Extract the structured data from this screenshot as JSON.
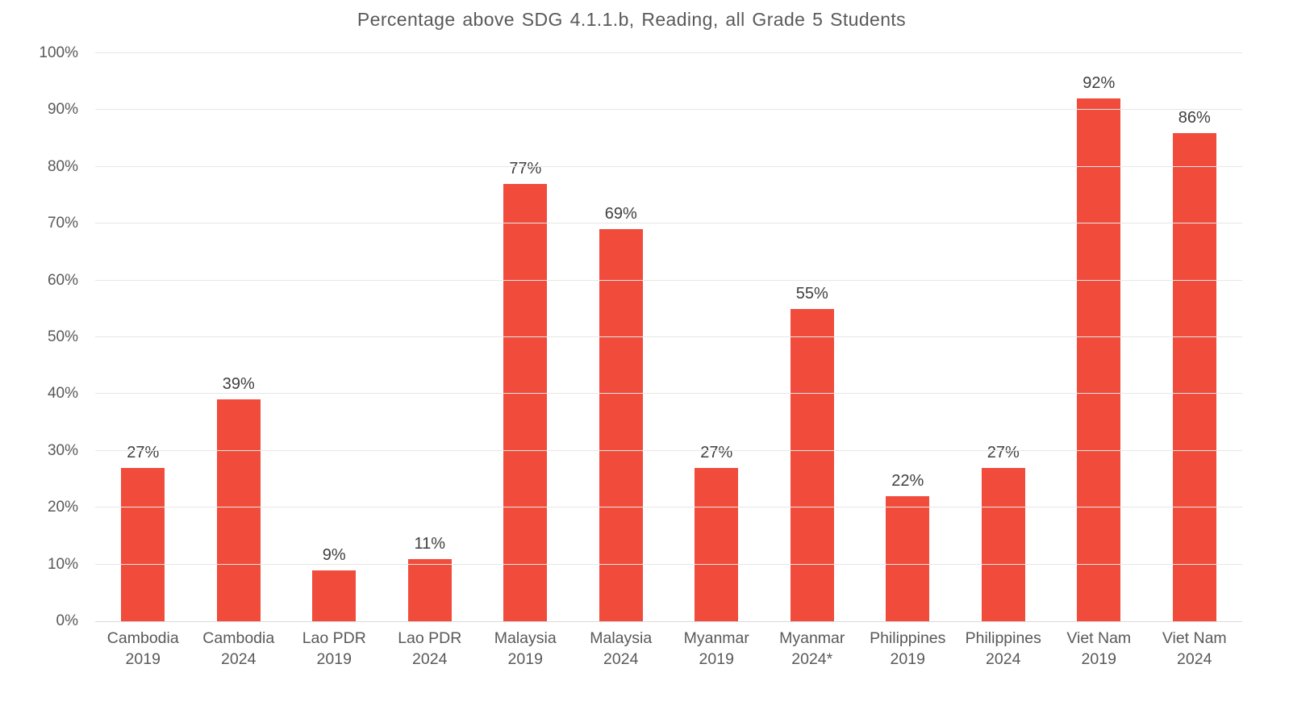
{
  "chart_data": {
    "type": "bar",
    "title": "Percentage above SDG 4.1.1.b, Reading, all Grade 5 Students",
    "categories": [
      "Cambodia 2019",
      "Cambodia 2024",
      "Lao PDR 2019",
      "Lao PDR 2024",
      "Malaysia 2019",
      "Malaysia 2024",
      "Myanmar 2019",
      "Myanmar 2024*",
      "Philippines 2019",
      "Philippines 2024",
      "Viet Nam 2019",
      "Viet Nam 2024"
    ],
    "values": [
      27,
      39,
      9,
      11,
      77,
      69,
      27,
      55,
      22,
      27,
      92,
      86
    ],
    "data_labels": [
      "27%",
      "39%",
      "9%",
      "11%",
      "77%",
      "69%",
      "27%",
      "55%",
      "22%",
      "27%",
      "92%",
      "86%"
    ],
    "xlabel": "",
    "ylabel": "",
    "ylim": [
      0,
      100
    ],
    "ytick_step": 10,
    "ytick_labels": [
      "0%",
      "10%",
      "20%",
      "30%",
      "40%",
      "50%",
      "60%",
      "70%",
      "80%",
      "90%",
      "100%"
    ],
    "grid": true,
    "legend_position": "none",
    "colors": {
      "bar": "#F04B3B",
      "gridline": "#E6E6E6",
      "axis_line": "#D9D9D9",
      "axis_text": "#595959",
      "data_label_text": "#3F3F3F",
      "title_text": "#595959",
      "background": "#FFFFFF"
    }
  }
}
